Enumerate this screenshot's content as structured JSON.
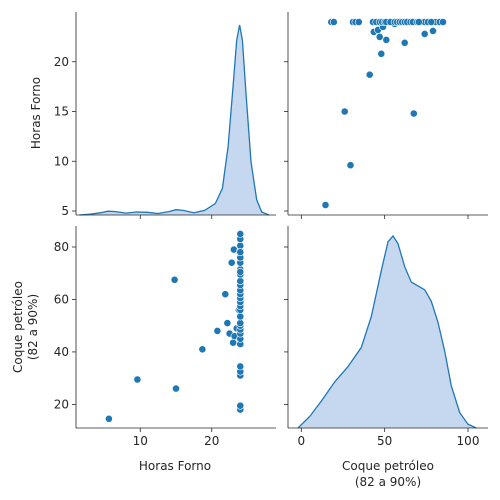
{
  "chart_data": {
    "type": "pairplot",
    "variables": [
      "Horas Forno",
      "Coque petróleo (82 a 90%)"
    ],
    "axis_labels": {
      "horas": "Horas Forno",
      "coque_line1": "Coque petróleo",
      "coque_line2": "(82 a 90%)"
    },
    "color": "#1f77b4",
    "fill_color": "#aec7e8",
    "ranges": {
      "horas": [
        4.6,
        25.0
      ],
      "horas_x": [
        1.0,
        29.0
      ],
      "coque": [
        11.0,
        88.0
      ],
      "coque_x": [
        -8.0,
        112.0
      ]
    },
    "ticks": {
      "horas_y": [
        5,
        10,
        15,
        20
      ],
      "horas_x": [
        10,
        20
      ],
      "coque_y": [
        20,
        40,
        60,
        80
      ],
      "coque_x": [
        0,
        50,
        100
      ]
    },
    "points": [
      [
        5.6,
        14.5
      ],
      [
        9.6,
        29.5
      ],
      [
        15.0,
        26.0
      ],
      [
        14.8,
        67.5
      ],
      [
        18.7,
        41.0
      ],
      [
        20.8,
        48.0
      ],
      [
        21.9,
        62.0
      ],
      [
        22.2,
        51.0
      ],
      [
        22.5,
        47.0
      ],
      [
        22.8,
        74.0
      ],
      [
        23.0,
        43.5
      ],
      [
        23.1,
        79.0
      ],
      [
        23.2,
        46.0
      ],
      [
        23.5,
        49.0
      ],
      [
        23.8,
        56.0
      ],
      [
        24.0,
        18.0
      ],
      [
        24.0,
        19.5
      ],
      [
        24.0,
        31.0
      ],
      [
        24.0,
        32.5
      ],
      [
        24.0,
        34.5
      ],
      [
        24.0,
        43.0
      ],
      [
        24.0,
        45.0
      ],
      [
        24.0,
        47.0
      ],
      [
        24.0,
        48.5
      ],
      [
        24.0,
        50.0
      ],
      [
        24.0,
        51.0
      ],
      [
        24.0,
        53.5
      ],
      [
        24.0,
        56.0
      ],
      [
        24.0,
        57.5
      ],
      [
        24.0,
        59.0
      ],
      [
        24.0,
        60.5
      ],
      [
        24.0,
        62.0
      ],
      [
        24.0,
        63.5
      ],
      [
        24.0,
        65.5
      ],
      [
        24.0,
        67.0
      ],
      [
        24.0,
        69.5
      ],
      [
        24.0,
        71.5
      ],
      [
        24.0,
        74.0
      ],
      [
        24.0,
        76.0
      ],
      [
        24.0,
        78.5
      ],
      [
        24.0,
        80.5
      ],
      [
        24.0,
        83.0
      ],
      [
        24.0,
        85.0
      ],
      [
        24.0,
        78.0
      ],
      [
        24.0,
        70.5
      ]
    ],
    "kde_horas": {
      "x": [
        1.5,
        3,
        4.5,
        5.5,
        6.5,
        8,
        9.5,
        11,
        12.5,
        14,
        15,
        16,
        17.5,
        19,
        20.5,
        21.5,
        22.3,
        23,
        23.5,
        23.9,
        24.3,
        24.8,
        25.5,
        26.3,
        27,
        28
      ],
      "y": [
        0.0,
        0.002,
        0.006,
        0.01,
        0.009,
        0.005,
        0.008,
        0.007,
        0.004,
        0.009,
        0.014,
        0.012,
        0.006,
        0.012,
        0.03,
        0.07,
        0.18,
        0.34,
        0.46,
        0.5,
        0.46,
        0.32,
        0.14,
        0.04,
        0.008,
        0.0
      ]
    },
    "kde_coque": {
      "x": [
        -2,
        5,
        12,
        20,
        28,
        36,
        42,
        48,
        52,
        55,
        58,
        62,
        66,
        70,
        74,
        78,
        82,
        86,
        90,
        95,
        100,
        105
      ],
      "y": [
        0.0,
        0.06,
        0.14,
        0.24,
        0.32,
        0.42,
        0.58,
        0.82,
        0.97,
        1.0,
        0.96,
        0.84,
        0.76,
        0.74,
        0.72,
        0.66,
        0.55,
        0.4,
        0.22,
        0.08,
        0.02,
        0.0
      ]
    }
  }
}
